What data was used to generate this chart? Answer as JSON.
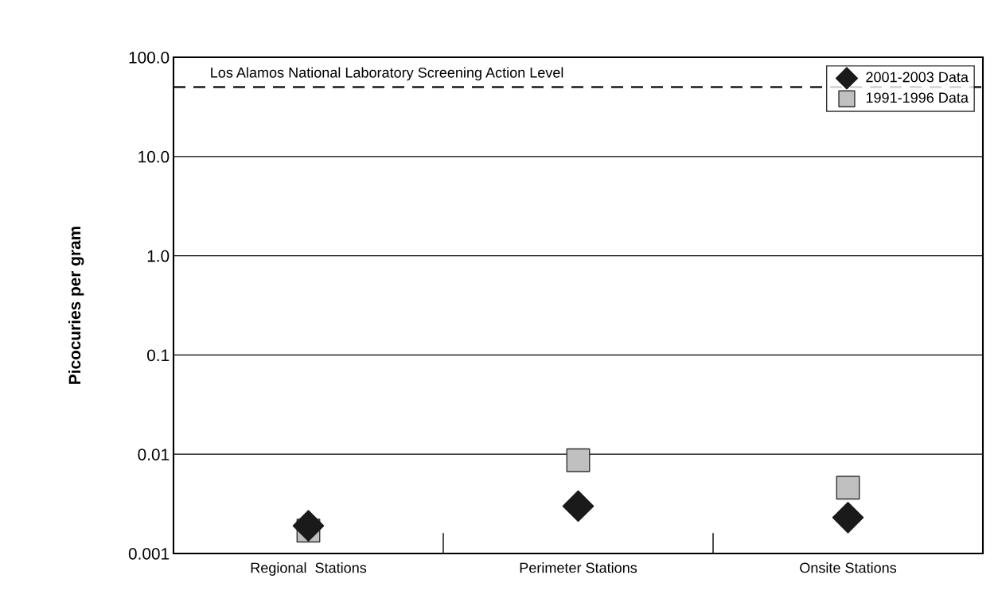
{
  "chart_data": {
    "type": "scatter",
    "ylabel": "Picocuries per gram",
    "categories": [
      "Regional  Stations",
      "Perimeter Stations",
      "Onsite Stations"
    ],
    "series": [
      {
        "name": "2001-2003 Data",
        "color": "#1a1a1a",
        "marker": "diamond",
        "values": [
          0.0019,
          0.003,
          0.0023
        ]
      },
      {
        "name": "1991-1996 Data",
        "color": "#c0c0c0",
        "marker": "square",
        "values": [
          0.0017,
          0.0087,
          0.0046
        ]
      }
    ],
    "log": "y",
    "ylim": [
      0.001,
      100
    ],
    "yticks": [
      {
        "value": 0.001,
        "label": "0.001"
      },
      {
        "value": 0.01,
        "label": "0.01"
      },
      {
        "value": 0.1,
        "label": "0.1"
      },
      {
        "value": 1,
        "label": "1.0"
      },
      {
        "value": 10,
        "label": "10.0"
      },
      {
        "value": 100,
        "label": "100.0"
      }
    ],
    "grid": "y",
    "legend": "top right",
    "ref_lines": [
      {
        "axis": "y",
        "value": 50,
        "label": "Los Alamos National Laboratory Screening Action Level",
        "color": "#1a1a1a",
        "line_style": "dashed"
      }
    ]
  }
}
